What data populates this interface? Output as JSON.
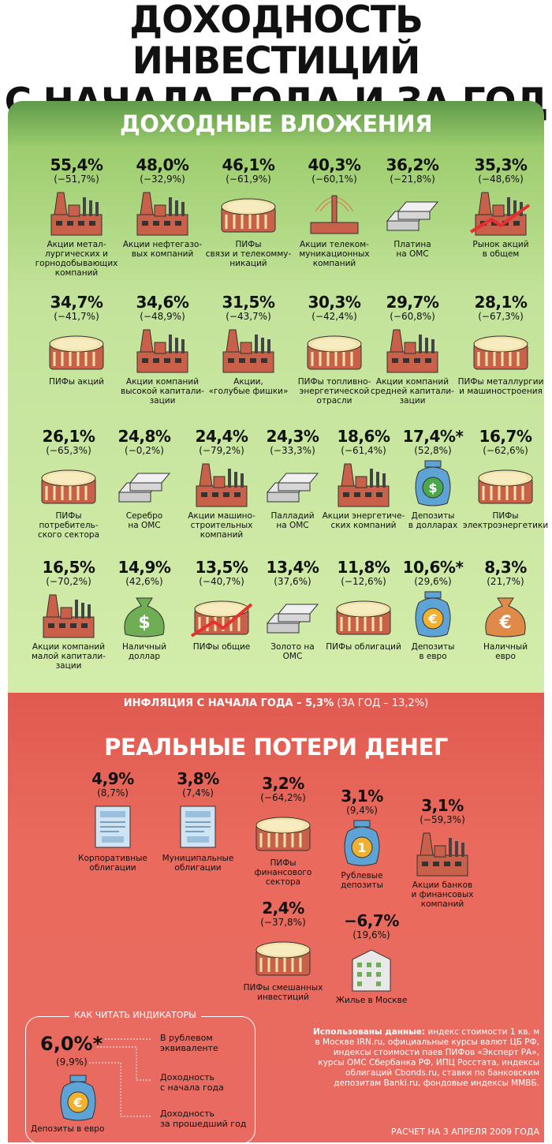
{
  "title": {
    "line1": "ДОХОДНОСТЬ ИНВЕСТИЦИЙ",
    "line2": "С НАЧАЛА ГОДА И ЗА ГОД"
  },
  "gains": {
    "heading": "ДОХОДНЫЕ ВЛОЖЕНИЯ",
    "items": [
      {
        "pct": "55,4%",
        "prev": "(−51,7%)",
        "label": "Акции метал-\nлургических и\nгорнодобывающих\nкомпаний",
        "icon": "factory-icon"
      },
      {
        "pct": "48,0%",
        "prev": "(−32,9%)",
        "label": "Акции нефтегазо-\nвых компаний",
        "icon": "factory-icon"
      },
      {
        "pct": "46,1%",
        "prev": "(−61,9%)",
        "label": "ПИФы\nсвязи и телекомму-\nникаций",
        "icon": "cake-icon"
      },
      {
        "pct": "40,3%",
        "prev": "(−60,1%)",
        "label": "Акции телеком-\nмуникационных\nкомпаний",
        "icon": "tower-icon"
      },
      {
        "pct": "36,2%",
        "prev": "(−21,8%)",
        "label": "Платина\nна ОМС",
        "icon": "bars-icon"
      },
      {
        "pct": "35,3%",
        "prev": "(−48,6%)",
        "label": "Рынок акций\nв общем",
        "icon": "factory-chart-icon"
      },
      {
        "pct": "34,7%",
        "prev": "(−41,7%)",
        "label": "ПИФы акций",
        "icon": "cake-icon"
      },
      {
        "pct": "34,6%",
        "prev": "(−48,9%)",
        "label": "Акции компаний\nвысокой капитали-\nзации",
        "icon": "factory-icon"
      },
      {
        "pct": "31,5%",
        "prev": "(−43,7%)",
        "label": "Акции,\n«голубые фишки»",
        "icon": "factory-icon"
      },
      {
        "pct": "30,3%",
        "prev": "(−42,4%)",
        "label": "ПИФы топливно-\nэнергетической\nотрасли",
        "icon": "cake-icon"
      },
      {
        "pct": "29,7%",
        "prev": "(−60,8%)",
        "label": "Акции компаний\nсредней капитали-\nзации",
        "icon": "factory-icon"
      },
      {
        "pct": "28,1%",
        "prev": "(−67,3%)",
        "label": "ПИФы металлургии\nи машиностроения",
        "icon": "cake-icon"
      },
      {
        "pct": "26,1%",
        "prev": "(−65,3%)",
        "label": "ПИФы потребитель-\nского сектора",
        "icon": "cake-icon"
      },
      {
        "pct": "24,8%",
        "prev": "(−0,2%)",
        "label": "Серебро\nна ОМС",
        "icon": "bars-icon"
      },
      {
        "pct": "24,4%",
        "prev": "(−79,2%)",
        "label": "Акции машино-\nстроительных\nкомпаний",
        "icon": "factory-icon"
      },
      {
        "pct": "24,3%",
        "prev": "(−33,3%)",
        "label": "Палладий\nна ОМС",
        "icon": "bars-icon"
      },
      {
        "pct": "18,6%",
        "prev": "(−61,4%)",
        "label": "Акции энергетиче-\nских компаний",
        "icon": "factory-icon"
      },
      {
        "pct": "17,4%*",
        "prev": "(52,8%)",
        "label": "Депозиты\nв долларах",
        "icon": "dollar-jar-icon"
      },
      {
        "pct": "16,7%",
        "prev": "(−62,6%)",
        "label": "ПИФы\nэлектроэнергетики",
        "icon": "cake-icon"
      },
      {
        "pct": "16,5%",
        "prev": "(−70,2%)",
        "label": "Акции компаний\nмалой капитали-\nзации",
        "icon": "factory-icon"
      },
      {
        "pct": "14,9%",
        "prev": "(42,6%)",
        "label": "Наличный\nдоллар",
        "icon": "dollar-bag-icon"
      },
      {
        "pct": "13,5%",
        "prev": "(−40,7%)",
        "label": "ПИФы общие",
        "icon": "cake-chart-icon"
      },
      {
        "pct": "13,4%",
        "prev": "(37,6%)",
        "label": "Золото на\nОМС",
        "icon": "bars-icon"
      },
      {
        "pct": "11,8%",
        "prev": "(−12,6%)",
        "label": "ПИФы облигаций",
        "icon": "cake-icon"
      },
      {
        "pct": "10,6%*",
        "prev": "(29,6%)",
        "label": "Депозиты\nв евро",
        "icon": "euro-jar-icon"
      },
      {
        "pct": "8,3%",
        "prev": "(21,7%)",
        "label": "Наличный\nевро",
        "icon": "euro-bag-icon"
      }
    ]
  },
  "inflation": {
    "bold": "ИНФЛЯЦИЯ С НАЧАЛА ГОДА – 5,3%",
    "rest": " (ЗА ГОД – 13,2%)"
  },
  "losses": {
    "heading": "РЕАЛЬНЫЕ ПОТЕРИ ДЕНЕГ",
    "items": [
      {
        "pct": "4,9%",
        "prev": "(8,7%)",
        "label": "Корпоративные\nоблигации",
        "icon": "bond-icon"
      },
      {
        "pct": "3,8%",
        "prev": "(7,4%)",
        "label": "Муниципальные\nоблигации",
        "icon": "bond-icon"
      },
      {
        "pct": "3,2%",
        "prev": "(−64,2%)",
        "label": "ПИФы\nфинансового\nсектора",
        "icon": "cake-icon"
      },
      {
        "pct": "3,1%",
        "prev": "(9,4%)",
        "label": "Рублевые\nдепозиты",
        "icon": "ruble-jar-icon"
      },
      {
        "pct": "3,1%",
        "prev": "(−59,3%)",
        "label": "Акции банков\nи финансовых\nкомпаний",
        "icon": "factory-icon"
      },
      {
        "pct": "2,4%",
        "prev": "(−37,8%)",
        "label": "ПИФы смешанных\nинвестиций",
        "icon": "cake-icon"
      },
      {
        "pct": "−6,7%",
        "prev": "(19,6%)",
        "label": "Жилье в Москве",
        "icon": "building-icon"
      }
    ]
  },
  "legend": {
    "title": "КАК ЧИТАТЬ ИНДИКАТОРЫ",
    "value": "6,0%*",
    "sub": "(9,9%)",
    "note1": "В рублевом\nэквиваленте",
    "note2": "Доходность\nс начала года",
    "note3": "Доходность\nза прошедший год",
    "name": "Депозиты в евро"
  },
  "sources": {
    "bold": "Использованы данные:",
    "text": " индекс стоимости 1 кв. м в Москве IRN.ru, официальные курсы валют ЦБ РФ, индексы стоимости паев ПИФов «Эксперт РА», курсы ОМС Сбербанка РФ, ИПЦ Росстата, индексы облигаций Cbonds.ru, ставки по банковским депозитам Banki.ru, фондовые индексы ММВБ.",
    "calc": "РАСЧЕТ НА 3 АПРЕЛЯ 2009 ГОДА"
  },
  "colors": {
    "green_top": "#5f9a4a",
    "green_bottom": "#d3ecaa",
    "red": "#e86a60",
    "brick": "#c9604a"
  }
}
